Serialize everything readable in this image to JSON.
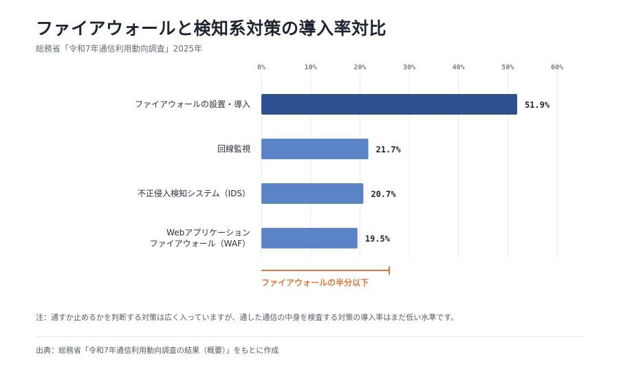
{
  "header": {
    "title": "ファイアウォールと検知系対策の導入率対比",
    "subtitle": "総務省「令和7年通信利用動向調査」2025年"
  },
  "chart_data": {
    "type": "bar",
    "orientation": "horizontal",
    "categories": [
      [
        "ファイアウォールの設置・導入"
      ],
      [
        "回線監視"
      ],
      [
        "不正侵入検知システム（IDS）"
      ],
      [
        "Webアプリケーション",
        "ファイアウォール（WAF）"
      ]
    ],
    "values": [
      51.9,
      21.7,
      20.7,
      19.5
    ],
    "value_labels": [
      "51.9%",
      "21.7%",
      "20.7%",
      "19.5%"
    ],
    "xlim": [
      0,
      60
    ],
    "ticks": [
      0,
      10,
      20,
      30,
      40,
      50,
      60
    ],
    "tick_labels": [
      "0%",
      "10%",
      "20%",
      "30%",
      "40%",
      "50%",
      "60%"
    ],
    "xaxis_position": "top",
    "grid": true,
    "colors": {
      "highlight": "#2e5090",
      "default": "#5b84c6",
      "annotation": "#e0763a"
    },
    "annotation": {
      "text": "ファイアウォールの半分以下",
      "from": 0,
      "to": 25.95
    }
  },
  "footer": {
    "note": "注：通すか止めるかを判断する対策は広く入っていますが、通した通信の中身を検査する対策の導入率はまだ低い水準です。",
    "source": "出典：総務省「令和7年通信利用動向調査の結果（概要）」をもとに作成"
  }
}
